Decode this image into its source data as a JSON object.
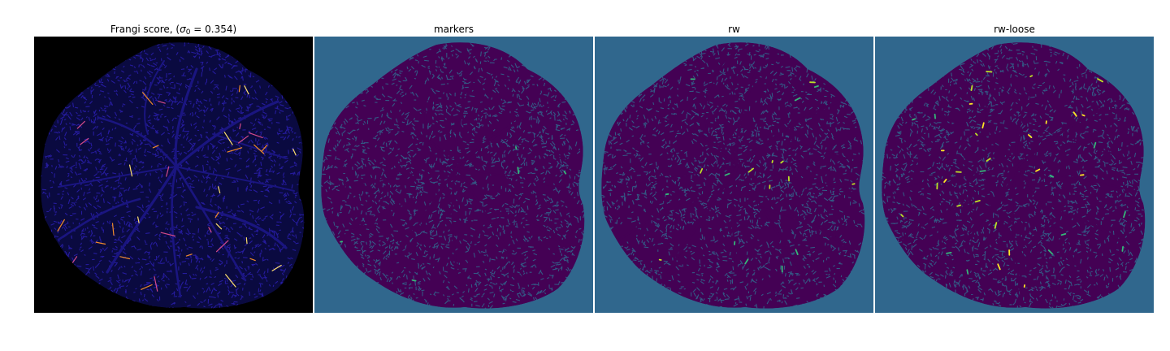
{
  "panels": [
    {
      "id": "frangi",
      "title_prefix": "Frangi score, (",
      "title_sigma": "σ",
      "title_sub": "0",
      "title_suffix": " = 0.354)",
      "background": "#000000",
      "vessel_color": "#2a1fae",
      "highlight_colors": [
        "#f08a2a",
        "#ffe070",
        "#d44a8a"
      ]
    },
    {
      "id": "markers",
      "title": "markers",
      "background": "#30678d",
      "vessel_color": "#440154",
      "highlight_colors": [
        "#35b779"
      ]
    },
    {
      "id": "rw",
      "title": "rw",
      "background": "#30678d",
      "vessel_color": "#440154",
      "highlight_colors": [
        "#bddf26",
        "#35b779"
      ]
    },
    {
      "id": "rw-loose",
      "title": "rw-loose",
      "background": "#30678d",
      "vessel_color": "#440154",
      "highlight_colors": [
        "#fde725",
        "#bddf26",
        "#35b779"
      ]
    }
  ]
}
